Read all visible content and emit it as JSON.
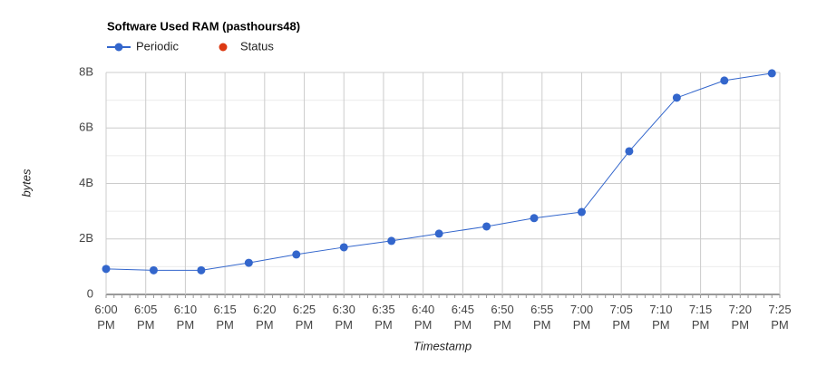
{
  "chart_data": {
    "type": "line",
    "title": "Software Used RAM (pasthours48)",
    "x_label": "Timestamp",
    "y_label": "bytes",
    "x": [
      "6:00 PM",
      "6:06 PM",
      "6:12 PM",
      "6:18 PM",
      "6:24 PM",
      "6:30 PM",
      "6:36 PM",
      "6:42 PM",
      "6:48 PM",
      "6:54 PM",
      "7:00 PM",
      "7:06 PM",
      "7:12 PM",
      "7:18 PM",
      "7:24 PM"
    ],
    "series": [
      {
        "name": "Periodic",
        "color": "#3366cc",
        "values": [
          920000000,
          870000000,
          870000000,
          1140000000,
          1440000000,
          1700000000,
          1930000000,
          2190000000,
          2450000000,
          2750000000,
          2970000000,
          5160000000,
          7090000000,
          7710000000,
          7970000000
        ]
      },
      {
        "name": "Status",
        "color": "#dc3912",
        "values": [
          null,
          null,
          null,
          null,
          null,
          null,
          null,
          null,
          null,
          null,
          null,
          null,
          null,
          null,
          null
        ]
      }
    ],
    "xlim": [
      "6:00 PM",
      "7:25 PM"
    ],
    "xticks": [
      "6:00 PM",
      "6:05 PM",
      "6:10 PM",
      "6:15 PM",
      "6:20 PM",
      "6:25 PM",
      "6:30 PM",
      "6:35 PM",
      "6:40 PM",
      "6:45 PM",
      "6:50 PM",
      "6:55 PM",
      "7:00 PM",
      "7:05 PM",
      "7:10 PM",
      "7:15 PM",
      "7:20 PM",
      "7:25 PM"
    ],
    "ylim": [
      0,
      8000000000
    ],
    "yticks": [
      0,
      {
        "value": 2000000000,
        "label": "2B"
      },
      {
        "value": 4000000000,
        "label": "4B"
      },
      {
        "value": 6000000000,
        "label": "6B"
      },
      {
        "value": 8000000000,
        "label": "8B"
      }
    ],
    "grid": true
  }
}
